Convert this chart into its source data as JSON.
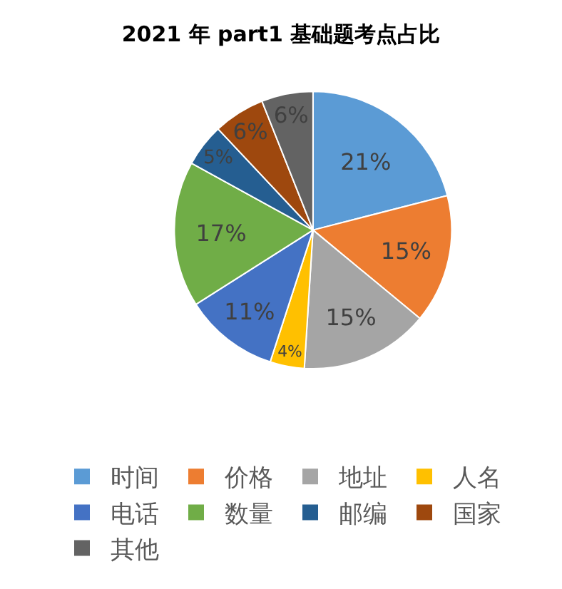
{
  "chart_data": {
    "type": "pie",
    "title": "2021 年 part1 基础题考点占比",
    "categories": [
      "时间",
      "价格",
      "地址",
      "人名",
      "电话",
      "数量",
      "邮编",
      "国家",
      "其他"
    ],
    "values": [
      21,
      15,
      15,
      4,
      11,
      17,
      5,
      6,
      6
    ],
    "value_labels": [
      "21%",
      "15%",
      "15%",
      "4%",
      "11%",
      "17%",
      "5%",
      "6%",
      "6%"
    ],
    "colors": [
      "#5b9bd5",
      "#ed7d31",
      "#a5a5a5",
      "#ffc000",
      "#4472c4",
      "#70ad47",
      "#255e91",
      "#9e480e",
      "#636363"
    ],
    "legend": "bottom"
  }
}
